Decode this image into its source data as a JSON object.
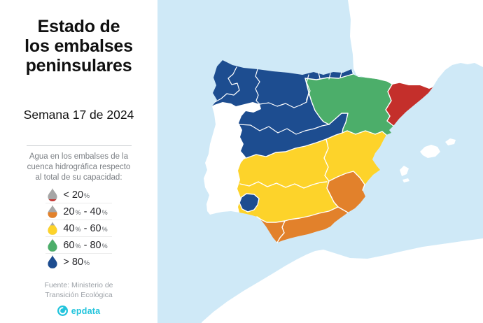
{
  "panel": {
    "title_lines": [
      "Estado de",
      "los embalses",
      "peninsulares"
    ],
    "subtitle": "Semana 17 de 2024",
    "legend_intro_lines": [
      "Agua en los embalses de la",
      "cuenca hidrográfica respecto",
      "al total de su capacidad:"
    ],
    "legend_items": [
      {
        "label": "< 20%",
        "segments": [
          "< 20",
          "%",
          "",
          ""
        ],
        "color": "#c42f2b",
        "fill_percent": 15
      },
      {
        "label": "20% - 40%",
        "segments": [
          "20",
          "%",
          " - 40",
          "%"
        ],
        "color": "#e2812b",
        "fill_percent": 45
      },
      {
        "label": "40% - 60%",
        "segments": [
          "40",
          "%",
          " - 60",
          "%"
        ],
        "color": "#fdd32a",
        "fill_percent": 72
      },
      {
        "label": "60% - 80%",
        "segments": [
          "60",
          "%",
          " - 80",
          "%"
        ],
        "color": "#4cae6a",
        "fill_percent": 88
      },
      {
        "label": "> 80%",
        "segments": [
          "> 80",
          "%",
          "",
          ""
        ],
        "color": "#1d4d90",
        "fill_percent": 100
      }
    ],
    "empty_drop_color": "#a6a6a6",
    "source_lines": [
      "Fuente: Ministerio de",
      "Transición Ecológica"
    ],
    "brand": "epdata",
    "brand_color": "#22c4dc"
  },
  "map": {
    "sea_color": "#cfe9f7",
    "land_color": "#ffffff",
    "border_color": "#ffffff",
    "regions": [
      {
        "area": "northwest-north-and-central-basins",
        "category": "> 80%",
        "color": "#1d4d90"
      },
      {
        "area": "ebro-valley-northeast",
        "category": "60% - 80%",
        "color": "#4cae6a"
      },
      {
        "area": "catalonia-inner-basins",
        "category": "< 20%",
        "color": "#c42f2b"
      },
      {
        "area": "central-south-and-east-basins",
        "category": "40% - 60%",
        "color": "#fdd32a"
      },
      {
        "area": "segura-southeast",
        "category": "20% - 40%",
        "color": "#e2812b"
      },
      {
        "area": "andalusian-mediterranean-coast",
        "category": "20% - 40%",
        "color": "#e2812b"
      },
      {
        "area": "guadalete-barbate-southwest",
        "category": "20% - 40%",
        "color": "#e2812b"
      },
      {
        "area": "tinto-odiel-southwest",
        "category": "> 80%",
        "color": "#1d4d90"
      }
    ]
  }
}
